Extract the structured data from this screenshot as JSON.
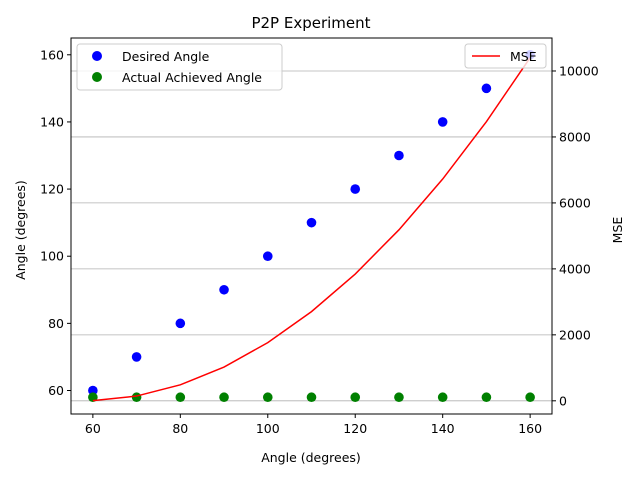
{
  "chart_data": {
    "type": "scatter",
    "title": "P2P Experiment",
    "xlabel": "Angle (degrees)",
    "ylabel": "Angle (degrees)",
    "ylabel_right": "MSE",
    "xlim": [
      55,
      165
    ],
    "ylim": [
      53,
      165
    ],
    "ylim_right": [
      -400,
      11000
    ],
    "xticks": [
      60,
      80,
      100,
      120,
      140,
      160
    ],
    "yticks": [
      60,
      80,
      100,
      120,
      140,
      160
    ],
    "yticks_right": [
      0,
      2000,
      4000,
      6000,
      8000,
      10000
    ],
    "x": [
      60,
      70,
      80,
      90,
      100,
      110,
      120,
      130,
      140,
      150,
      160
    ],
    "series": [
      {
        "name": "Desired Angle",
        "kind": "scatter",
        "axis": "left",
        "color": "#0000ff",
        "values": [
          60,
          70,
          80,
          90,
          100,
          110,
          120,
          130,
          140,
          150,
          160
        ]
      },
      {
        "name": "Actual Achieved Angle",
        "kind": "scatter",
        "axis": "left",
        "color": "#008000",
        "values": [
          58,
          58,
          58,
          58,
          58,
          58,
          58,
          58,
          58,
          58,
          58
        ]
      },
      {
        "name": "MSE",
        "kind": "line",
        "axis": "right",
        "color": "#ff0000",
        "values": [
          4,
          144,
          484,
          1024,
          1764,
          2704,
          3844,
          5184,
          6724,
          8464,
          10404
        ]
      }
    ],
    "grid": "horizontal lines at right-axis ticks",
    "legend_left_placement": "upper-left",
    "legend_right_placement": "upper-right"
  }
}
